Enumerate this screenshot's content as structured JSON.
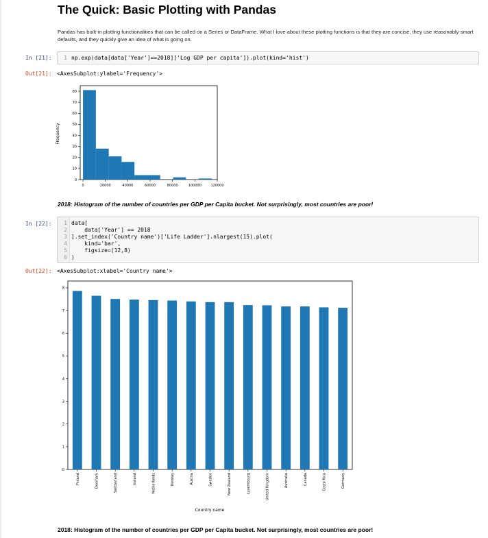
{
  "heading": "The Quick: Basic Plotting with Pandas",
  "intro": "Pandas has built-in plotting functionalities that can be called on a Series or DataFrame. What I love about these plotting functions is that they are concise, they use reasonably smart defaults, and they quickly give an idea of what is going on.",
  "cells": [
    {
      "in_prompt": "In [21]:",
      "line_numbers": [
        "1"
      ],
      "code_lines": [
        "np.exp(data[data['Year']==2018]['Log GDP per capita']).plot(kind='hist')"
      ],
      "out_prompt": "Out[21]:",
      "out_text": "<AxesSubplot:ylabel='Frequency'>",
      "caption": "2018: Histogram of the number of countries per GDP per Capita bucket. Not surprisingly, most countries are poor!"
    },
    {
      "in_prompt": "In [22]:",
      "line_numbers": [
        "1",
        "2",
        "3",
        "4",
        "5",
        "6"
      ],
      "code_lines": [
        "data[",
        "    data['Year'] == 2018",
        "].set_index('Country name')['Life Ladder'].nlargest(15).plot(",
        "    kind='bar',",
        "    figsize=(12,8)",
        ")"
      ],
      "out_prompt": "Out[22]:",
      "out_text": "<AxesSubplot:xlabel='Country name'>",
      "caption": "2018: Histogram of the number of countries per GDP per Capita bucket. Not surprisingly, most countries are poor!"
    }
  ],
  "chart_data": [
    {
      "type": "bar",
      "subtype": "histogram",
      "bin_edges": [
        0,
        11500,
        23000,
        34500,
        46000,
        57500,
        69000,
        80500,
        92000,
        103500,
        115000
      ],
      "values": [
        81,
        28,
        21,
        16,
        4,
        4,
        0,
        2,
        0,
        1
      ],
      "ylabel": "Frequency",
      "xlim": [
        -2500,
        120000
      ],
      "ylim": [
        0,
        85
      ],
      "xticks": [
        0,
        20000,
        40000,
        60000,
        80000,
        100000,
        120000
      ],
      "xtick_labels": [
        "0",
        "20000",
        "40000",
        "60000",
        "80000",
        "100000",
        "120000"
      ],
      "yticks": [
        0,
        10,
        20,
        30,
        40,
        50,
        60,
        70,
        80
      ],
      "color": "#1f77b4",
      "grid": false
    },
    {
      "type": "bar",
      "categories": [
        "Finland",
        "Denmark",
        "Switzerland",
        "Iceland",
        "Netherlands",
        "Norway",
        "Austria",
        "Sweden",
        "New Zealand",
        "Luxembourg",
        "United Kingdom",
        "Australia",
        "Canada",
        "Costa Rica",
        "Germany"
      ],
      "values": [
        7.86,
        7.65,
        7.51,
        7.48,
        7.46,
        7.44,
        7.4,
        7.37,
        7.37,
        7.24,
        7.23,
        7.18,
        7.18,
        7.14,
        7.12
      ],
      "xlabel": "Country name",
      "ylim": [
        0,
        8.3
      ],
      "yticks": [
        0,
        1,
        2,
        3,
        4,
        5,
        6,
        7,
        8
      ],
      "color": "#1f77b4",
      "grid": false
    }
  ]
}
